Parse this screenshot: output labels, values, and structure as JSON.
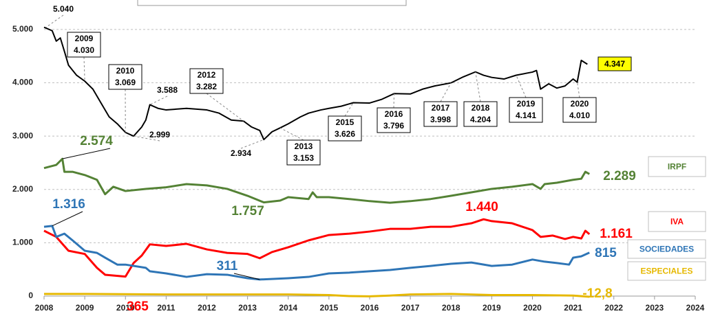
{
  "chart_data": {
    "type": "line",
    "xlim": [
      2008,
      2024
    ],
    "xticks": [
      2008,
      2009,
      2010,
      2011,
      2012,
      2013,
      2014,
      2015,
      2016,
      2017,
      2018,
      2019,
      2020,
      2021,
      2022,
      2023,
      2024
    ],
    "ylim": [
      0,
      5500
    ],
    "yticks": [
      0,
      {
        "value": 1000,
        "label": "1.000"
      },
      {
        "value": 2000,
        "label": "2.000"
      },
      {
        "value": 3000,
        "label": "3.000"
      },
      {
        "value": 4000,
        "label": "4.000"
      },
      {
        "value": 5000,
        "label": "5.000"
      }
    ],
    "grid": true,
    "series": [
      {
        "color": "#000000",
        "x": [
          2008.0,
          2008.2,
          2008.3,
          2008.4,
          2008.5,
          2008.6,
          2008.8,
          2009.0,
          2009.2,
          2009.4,
          2009.6,
          2009.8,
          2010.0,
          2010.2,
          2010.4,
          2010.5,
          2010.6,
          2010.8,
          2011.0,
          2011.5,
          2012.0,
          2012.3,
          2012.6,
          2012.9,
          2013.1,
          2013.3,
          2013.4,
          2013.6,
          2013.8,
          2014.0,
          2014.3,
          2014.5,
          2014.8,
          2015.0,
          2015.3,
          2015.6,
          2016.0,
          2016.3,
          2016.6,
          2017.0,
          2017.3,
          2017.6,
          2018.0,
          2018.3,
          2018.6,
          2018.8,
          2019.0,
          2019.3,
          2019.6,
          2020.0,
          2020.1,
          2020.2,
          2020.4,
          2020.6,
          2020.8,
          2021.0,
          2021.1,
          2021.2,
          2021.35
        ],
        "values": [
          5040,
          4975,
          4780,
          4840,
          4590,
          4330,
          4140,
          4030,
          3880,
          3620,
          3360,
          3230,
          3069,
          2999,
          3170,
          3300,
          3588,
          3520,
          3490,
          3520,
          3490,
          3430,
          3300,
          3282,
          3170,
          3105,
          2934,
          3080,
          3153,
          3230,
          3360,
          3430,
          3490,
          3520,
          3560,
          3626,
          3620,
          3690,
          3796,
          3790,
          3880,
          3940,
          3998,
          4110,
          4204,
          4140,
          4100,
          4070,
          4141,
          4200,
          4230,
          3880,
          3980,
          3900,
          3940,
          4070,
          4010,
          4420,
          4347
        ]
      },
      {
        "name": "IRPF",
        "color": "#548235",
        "x": [
          2008.0,
          2008.3,
          2008.45,
          2008.5,
          2008.7,
          2009.0,
          2009.3,
          2009.5,
          2009.7,
          2010.0,
          2010.5,
          2011.0,
          2011.5,
          2012.0,
          2012.5,
          2013.0,
          2013.4,
          2013.8,
          2014.0,
          2014.5,
          2014.6,
          2014.7,
          2015.0,
          2015.5,
          2016.0,
          2016.5,
          2017.0,
          2017.5,
          2018.0,
          2018.5,
          2019.0,
          2019.5,
          2020.0,
          2020.2,
          2020.3,
          2020.6,
          2021.0,
          2021.2,
          2021.3,
          2021.4
        ],
        "values": [
          2400,
          2460,
          2574,
          2330,
          2330,
          2270,
          2180,
          1910,
          2050,
          1970,
          2010,
          2040,
          2100,
          2075,
          2010,
          1880,
          1757,
          1790,
          1855,
          1820,
          1945,
          1855,
          1855,
          1820,
          1780,
          1750,
          1780,
          1820,
          1880,
          1945,
          2010,
          2050,
          2100,
          2010,
          2100,
          2125,
          2180,
          2200,
          2330,
          2289
        ],
        "annotations": [
          {
            "x": 2008.45,
            "value": 2574,
            "label": "2.574"
          },
          {
            "x": 2013.4,
            "value": 1757,
            "label": "1.757"
          },
          {
            "x": 2021.4,
            "value": 2289,
            "label": "2.289"
          }
        ]
      },
      {
        "name": "IVA",
        "color": "#ff0000",
        "x": [
          2008.0,
          2008.3,
          2008.6,
          2009.0,
          2009.3,
          2009.5,
          2010.0,
          2010.2,
          2010.4,
          2010.6,
          2011.0,
          2011.5,
          2012.0,
          2012.5,
          2013.0,
          2013.3,
          2013.6,
          2014.0,
          2014.5,
          2015.0,
          2015.5,
          2016.0,
          2016.5,
          2017.0,
          2017.5,
          2018.0,
          2018.5,
          2018.8,
          2019.0,
          2019.5,
          2020.0,
          2020.2,
          2020.5,
          2020.8,
          2021.0,
          2021.2,
          2021.3,
          2021.4
        ],
        "values": [
          1225,
          1110,
          850,
          790,
          530,
          400,
          365,
          620,
          760,
          970,
          940,
          980,
          875,
          810,
          790,
          710,
          825,
          915,
          1045,
          1145,
          1170,
          1210,
          1260,
          1260,
          1300,
          1300,
          1365,
          1440,
          1405,
          1365,
          1237,
          1110,
          1135,
          1070,
          1110,
          1080,
          1225,
          1161
        ],
        "annotations": [
          {
            "x": 2010.0,
            "value": 365,
            "label": "365"
          },
          {
            "x": 2018.8,
            "value": 1440,
            "label": "1.440"
          },
          {
            "x": 2021.4,
            "value": 1161,
            "label": "1.161"
          }
        ]
      },
      {
        "name": "SOCIEDADES",
        "color": "#2e75b6",
        "x": [
          2008.0,
          2008.2,
          2008.3,
          2008.5,
          2008.7,
          2009.0,
          2009.3,
          2009.5,
          2009.8,
          2010.0,
          2010.5,
          2010.6,
          2011.0,
          2011.5,
          2012.0,
          2012.5,
          2013.0,
          2013.3,
          2014.0,
          2014.5,
          2015.0,
          2015.5,
          2016.0,
          2016.5,
          2017.0,
          2017.5,
          2018.0,
          2018.5,
          2019.0,
          2019.5,
          2020.0,
          2020.3,
          2020.6,
          2020.9,
          2021.0,
          2021.2,
          2021.4
        ],
        "values": [
          1300,
          1316,
          1110,
          1170,
          1045,
          850,
          810,
          720,
          590,
          590,
          530,
          465,
          425,
          360,
          410,
          400,
          335,
          311,
          335,
          360,
          425,
          440,
          465,
          490,
          530,
          565,
          605,
          630,
          565,
          590,
          685,
          645,
          620,
          590,
          720,
          745,
          815
        ],
        "annotations": [
          {
            "x": 2008.2,
            "value": 1316,
            "label": "1.316"
          },
          {
            "x": 2013.3,
            "value": 311,
            "label": "311"
          },
          {
            "x": 2021.4,
            "value": 815,
            "label": "815"
          }
        ]
      },
      {
        "name": "ESPECIALES",
        "color": "#e6b800",
        "x": [
          2008.0,
          2009.0,
          2010.0,
          2011.0,
          2012.0,
          2013.0,
          2014.0,
          2015.0,
          2015.5,
          2016.0,
          2016.5,
          2017.0,
          2018.0,
          2019.0,
          2020.0,
          2021.0,
          2021.4
        ],
        "values": [
          40,
          40,
          35,
          30,
          30,
          30,
          30,
          20,
          0,
          -5,
          10,
          30,
          40,
          20,
          20,
          10,
          -12.8
        ],
        "annotations": [
          {
            "x": 2021.4,
            "value": -12.8,
            "label": "-12,8"
          }
        ]
      }
    ],
    "annotations": [
      {
        "x": 2008.05,
        "value": 5040,
        "label": "5.040"
      },
      {
        "x": 2009.0,
        "value": 4030,
        "label": "4.030",
        "year": "2009"
      },
      {
        "x": 2010.0,
        "value": 3069,
        "label": "3.069",
        "year": "2010"
      },
      {
        "x": 2010.6,
        "value": 3588,
        "label": "3.588"
      },
      {
        "x": 2010.2,
        "value": 2999,
        "label": "2.999"
      },
      {
        "x": 2012.9,
        "value": 3282,
        "label": "3.282",
        "year": "2012"
      },
      {
        "x": 2013.4,
        "value": 2934,
        "label": "2.934"
      },
      {
        "x": 2013.8,
        "value": 3153,
        "label": "3.153",
        "year": "2013"
      },
      {
        "x": 2015.6,
        "value": 3626,
        "label": "3.626",
        "year": "2015"
      },
      {
        "x": 2016.6,
        "value": 3796,
        "label": "3.796",
        "year": "2016"
      },
      {
        "x": 2018.0,
        "value": 3998,
        "label": "3.998",
        "year": "2017"
      },
      {
        "x": 2018.6,
        "value": 4204,
        "label": "4.204",
        "year": "2018"
      },
      {
        "x": 2019.6,
        "value": 4141,
        "label": "4.141",
        "year": "2019"
      },
      {
        "x": 2021.1,
        "value": 4010,
        "label": "4.010",
        "year": "2020"
      },
      {
        "x": 2021.35,
        "value": 4347,
        "label": "4.347",
        "highlight": "#ffff00"
      }
    ]
  }
}
